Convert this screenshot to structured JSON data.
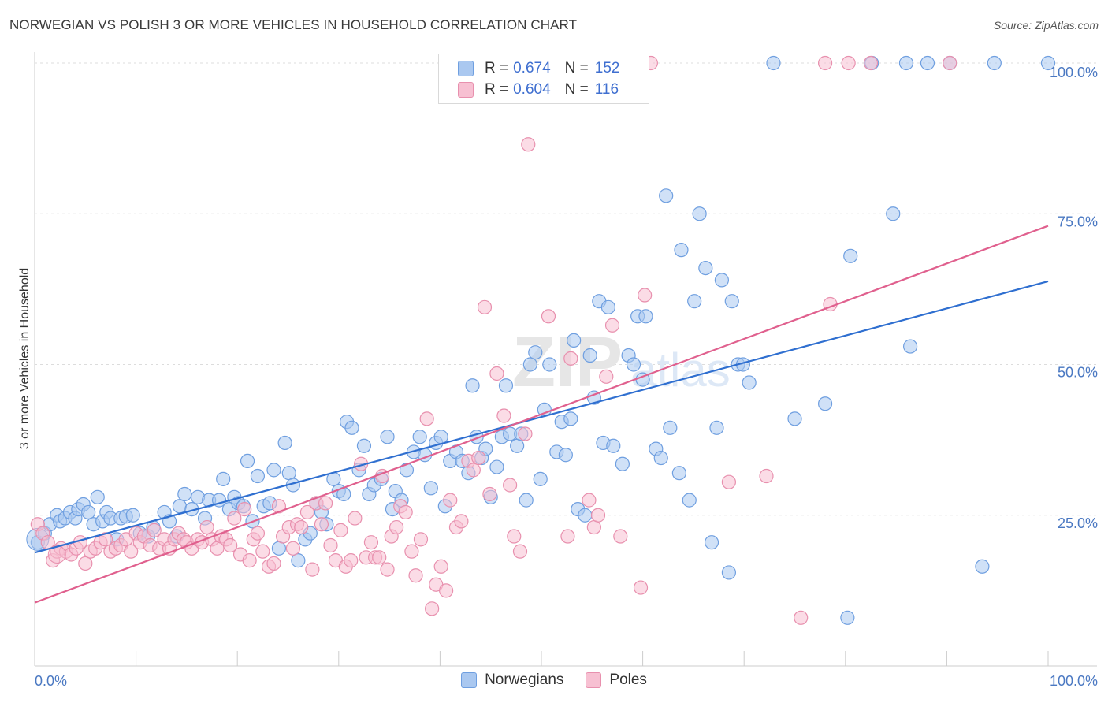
{
  "title": "NORWEGIAN VS POLISH 3 OR MORE VEHICLES IN HOUSEHOLD CORRELATION CHART",
  "source": "Source: ZipAtlas.com",
  "watermark": "ZIPatlas",
  "legend": {
    "r_label": "R =",
    "n_label": "N =",
    "rows": [
      {
        "r": "0.674",
        "n": "152",
        "color": "#aac8f0",
        "stroke": "#6f9fe0"
      },
      {
        "r": "0.604",
        "n": "116",
        "color": "#f7c0d2",
        "stroke": "#e890ae"
      }
    ]
  },
  "bottom_legend": [
    {
      "label": "Norwegians",
      "color": "#aac8f0",
      "stroke": "#6f9fe0"
    },
    {
      "label": "Poles",
      "color": "#f7c0d2",
      "stroke": "#e890ae"
    }
  ],
  "chart_data": {
    "type": "scatter",
    "title": "NORWEGIAN VS POLISH 3 OR MORE VEHICLES IN HOUSEHOLD CORRELATION CHART",
    "xlabel": "",
    "ylabel": "3 or more Vehicles in Household",
    "xlim": [
      0,
      100
    ],
    "ylim": [
      0,
      100
    ],
    "x_tick_labels": [
      "0.0%",
      "100.0%"
    ],
    "y_ticks": [
      25,
      50,
      75,
      100
    ],
    "y_tick_labels": [
      "25.0%",
      "50.0%",
      "75.0%",
      "100.0%"
    ],
    "grid": "horizontal dashed",
    "series": [
      {
        "name": "Norwegians",
        "color": "#6f9fe0",
        "fill": "#aac8f0",
        "line_color": "#2f6fd0",
        "trend": {
          "x": [
            0,
            100
          ],
          "y": [
            18.8,
            63.8
          ]
        },
        "points": [
          [
            0.3,
            20.5
          ],
          [
            1.0,
            22.0
          ],
          [
            1.5,
            23.5
          ],
          [
            2.2,
            25.0
          ],
          [
            2.5,
            24.0
          ],
          [
            3.0,
            24.5
          ],
          [
            3.5,
            25.5
          ],
          [
            4.0,
            24.5
          ],
          [
            4.3,
            26.0
          ],
          [
            4.8,
            26.8
          ],
          [
            5.3,
            25.5
          ],
          [
            5.8,
            23.5
          ],
          [
            6.2,
            28.0
          ],
          [
            6.7,
            24.0
          ],
          [
            7.1,
            25.5
          ],
          [
            7.5,
            24.5
          ],
          [
            8.1,
            21.0
          ],
          [
            8.5,
            24.5
          ],
          [
            9.0,
            24.8
          ],
          [
            9.7,
            25.0
          ],
          [
            10.4,
            22.0
          ],
          [
            11.2,
            21.5
          ],
          [
            11.7,
            23.0
          ],
          [
            12.8,
            25.5
          ],
          [
            13.3,
            24.0
          ],
          [
            14.0,
            21.5
          ],
          [
            14.3,
            26.5
          ],
          [
            14.8,
            28.5
          ],
          [
            15.5,
            26.0
          ],
          [
            16.1,
            28.0
          ],
          [
            16.8,
            24.5
          ],
          [
            17.2,
            27.5
          ],
          [
            18.2,
            27.5
          ],
          [
            18.6,
            31.0
          ],
          [
            19.2,
            26.0
          ],
          [
            19.7,
            28.0
          ],
          [
            20.1,
            27.0
          ],
          [
            20.6,
            26.5
          ],
          [
            21.0,
            34.0
          ],
          [
            21.5,
            24.0
          ],
          [
            22.0,
            31.5
          ],
          [
            22.6,
            26.5
          ],
          [
            23.2,
            27.0
          ],
          [
            23.6,
            32.5
          ],
          [
            24.1,
            19.5
          ],
          [
            24.7,
            37.0
          ],
          [
            25.1,
            32.0
          ],
          [
            25.5,
            30.0
          ],
          [
            26.0,
            17.5
          ],
          [
            26.7,
            21.0
          ],
          [
            27.2,
            22.0
          ],
          [
            27.8,
            27.0
          ],
          [
            28.3,
            25.5
          ],
          [
            28.8,
            23.5
          ],
          [
            29.5,
            31.0
          ],
          [
            30.0,
            29.0
          ],
          [
            30.5,
            28.5
          ],
          [
            30.8,
            40.5
          ],
          [
            31.3,
            39.5
          ],
          [
            32.0,
            32.5
          ],
          [
            32.5,
            36.5
          ],
          [
            33.0,
            28.5
          ],
          [
            33.5,
            30.0
          ],
          [
            34.2,
            31.0
          ],
          [
            34.8,
            38.0
          ],
          [
            35.3,
            26.0
          ],
          [
            35.6,
            29.0
          ],
          [
            36.2,
            27.5
          ],
          [
            36.7,
            32.5
          ],
          [
            37.4,
            35.5
          ],
          [
            38.0,
            38.0
          ],
          [
            38.5,
            35.0
          ],
          [
            39.1,
            29.5
          ],
          [
            39.6,
            37.0
          ],
          [
            40.1,
            38.0
          ],
          [
            40.5,
            26.5
          ],
          [
            41.0,
            34.0
          ],
          [
            41.6,
            35.5
          ],
          [
            42.2,
            34.0
          ],
          [
            42.8,
            32.0
          ],
          [
            43.2,
            46.5
          ],
          [
            43.6,
            38.0
          ],
          [
            44.1,
            34.5
          ],
          [
            44.5,
            36.0
          ],
          [
            45.0,
            28.0
          ],
          [
            45.6,
            33.0
          ],
          [
            46.1,
            38.0
          ],
          [
            46.5,
            46.5
          ],
          [
            46.9,
            38.5
          ],
          [
            47.6,
            36.5
          ],
          [
            48.0,
            38.5
          ],
          [
            48.5,
            27.5
          ],
          [
            48.9,
            50.0
          ],
          [
            49.4,
            52.0
          ],
          [
            49.9,
            31.0
          ],
          [
            50.3,
            42.5
          ],
          [
            50.8,
            50.0
          ],
          [
            51.5,
            35.5
          ],
          [
            52.0,
            40.5
          ],
          [
            52.4,
            35.0
          ],
          [
            52.9,
            41.0
          ],
          [
            53.2,
            54.0
          ],
          [
            53.6,
            26.0
          ],
          [
            54.3,
            25.0
          ],
          [
            54.8,
            51.5
          ],
          [
            55.2,
            44.5
          ],
          [
            55.7,
            60.5
          ],
          [
            56.1,
            37.0
          ],
          [
            56.6,
            59.5
          ],
          [
            57.1,
            36.5
          ],
          [
            58.0,
            33.5
          ],
          [
            58.6,
            51.5
          ],
          [
            59.1,
            50.0
          ],
          [
            59.5,
            58.0
          ],
          [
            60.0,
            47.5
          ],
          [
            60.3,
            58.0
          ],
          [
            61.3,
            36.0
          ],
          [
            61.8,
            34.5
          ],
          [
            62.3,
            78.0
          ],
          [
            62.7,
            39.5
          ],
          [
            63.6,
            32.0
          ],
          [
            63.8,
            69.0
          ],
          [
            64.6,
            27.5
          ],
          [
            65.1,
            60.5
          ],
          [
            65.6,
            75.0
          ],
          [
            66.2,
            66.0
          ],
          [
            66.8,
            20.5
          ],
          [
            67.3,
            39.5
          ],
          [
            67.8,
            64.0
          ],
          [
            68.5,
            15.5
          ],
          [
            68.8,
            60.5
          ],
          [
            69.4,
            50.0
          ],
          [
            69.9,
            50.0
          ],
          [
            70.5,
            47.0
          ],
          [
            72.9,
            100.0
          ],
          [
            75.0,
            41.0
          ],
          [
            78.0,
            43.5
          ],
          [
            80.2,
            8.0
          ],
          [
            80.5,
            68.0
          ],
          [
            82.6,
            100.0
          ],
          [
            84.7,
            75.0
          ],
          [
            86.0,
            100.0
          ],
          [
            86.4,
            53.0
          ],
          [
            88.1,
            100.0
          ],
          [
            90.3,
            100.0
          ],
          [
            93.5,
            16.5
          ],
          [
            94.7,
            100.0
          ],
          [
            100.0,
            100.0
          ]
        ]
      },
      {
        "name": "Poles",
        "color": "#e890ae",
        "fill": "#f7c0d2",
        "line_color": "#e0608e",
        "trend": {
          "x": [
            0,
            100
          ],
          "y": [
            10.5,
            73.0
          ]
        },
        "points": [
          [
            0.3,
            23.5
          ],
          [
            0.8,
            22.0
          ],
          [
            1.3,
            20.5
          ],
          [
            1.8,
            17.5
          ],
          [
            2.2,
            19.0
          ],
          [
            2.6,
            19.5
          ],
          [
            3.1,
            19.0
          ],
          [
            3.6,
            18.5
          ],
          [
            4.1,
            19.5
          ],
          [
            4.5,
            20.5
          ],
          [
            5.0,
            17.0
          ],
          [
            5.5,
            19.0
          ],
          [
            6.0,
            19.5
          ],
          [
            6.5,
            20.5
          ],
          [
            7.0,
            21.0
          ],
          [
            7.5,
            19.0
          ],
          [
            8.0,
            19.5
          ],
          [
            8.5,
            20.0
          ],
          [
            9.0,
            21.0
          ],
          [
            9.5,
            19.0
          ],
          [
            10.0,
            22.0
          ],
          [
            10.4,
            20.5
          ],
          [
            10.8,
            21.5
          ],
          [
            11.4,
            20.0
          ],
          [
            11.8,
            22.5
          ],
          [
            12.3,
            19.5
          ],
          [
            12.8,
            21.0
          ],
          [
            13.3,
            19.5
          ],
          [
            13.8,
            21.0
          ],
          [
            14.2,
            22.0
          ],
          [
            14.7,
            21.0
          ],
          [
            15.0,
            20.5
          ],
          [
            15.5,
            19.5
          ],
          [
            16.1,
            21.0
          ],
          [
            16.5,
            20.5
          ],
          [
            17.0,
            23.0
          ],
          [
            17.5,
            21.0
          ],
          [
            18.0,
            19.5
          ],
          [
            18.4,
            21.5
          ],
          [
            18.9,
            21.0
          ],
          [
            19.3,
            20.0
          ],
          [
            19.7,
            24.5
          ],
          [
            20.3,
            18.5
          ],
          [
            20.7,
            26.0
          ],
          [
            21.2,
            17.5
          ],
          [
            21.6,
            21.0
          ],
          [
            22.0,
            22.0
          ],
          [
            22.5,
            19.0
          ],
          [
            23.1,
            16.5
          ],
          [
            23.6,
            17.0
          ],
          [
            24.1,
            26.5
          ],
          [
            24.5,
            21.5
          ],
          [
            25.1,
            23.0
          ],
          [
            25.5,
            19.5
          ],
          [
            25.9,
            23.5
          ],
          [
            26.3,
            23.0
          ],
          [
            26.9,
            25.5
          ],
          [
            27.4,
            16.0
          ],
          [
            27.8,
            27.0
          ],
          [
            28.3,
            23.5
          ],
          [
            28.7,
            27.0
          ],
          [
            29.2,
            20.0
          ],
          [
            29.7,
            17.5
          ],
          [
            30.2,
            22.5
          ],
          [
            30.7,
            16.5
          ],
          [
            31.2,
            17.5
          ],
          [
            31.6,
            24.5
          ],
          [
            32.2,
            33.5
          ],
          [
            32.7,
            18.0
          ],
          [
            33.2,
            20.5
          ],
          [
            33.6,
            18.0
          ],
          [
            34.0,
            18.0
          ],
          [
            34.3,
            31.5
          ],
          [
            34.8,
            16.0
          ],
          [
            35.2,
            21.5
          ],
          [
            35.7,
            23.0
          ],
          [
            36.1,
            26.5
          ],
          [
            36.6,
            25.5
          ],
          [
            37.2,
            19.0
          ],
          [
            37.6,
            15.0
          ],
          [
            38.1,
            21.0
          ],
          [
            38.7,
            41.0
          ],
          [
            39.2,
            9.5
          ],
          [
            39.6,
            13.5
          ],
          [
            40.1,
            16.5
          ],
          [
            40.6,
            12.5
          ],
          [
            41.0,
            27.5
          ],
          [
            41.6,
            23.0
          ],
          [
            42.1,
            24.0
          ],
          [
            42.8,
            34.0
          ],
          [
            43.3,
            32.5
          ],
          [
            43.8,
            34.5
          ],
          [
            44.4,
            59.5
          ],
          [
            44.9,
            28.5
          ],
          [
            45.6,
            48.5
          ],
          [
            46.3,
            41.5
          ],
          [
            46.9,
            30.0
          ],
          [
            47.3,
            21.5
          ],
          [
            47.9,
            19.0
          ],
          [
            48.4,
            38.5
          ],
          [
            48.7,
            86.5
          ],
          [
            50.7,
            58.0
          ],
          [
            52.6,
            21.5
          ],
          [
            52.9,
            51.0
          ],
          [
            54.7,
            27.5
          ],
          [
            55.2,
            23.0
          ],
          [
            55.6,
            25.0
          ],
          [
            56.4,
            48.0
          ],
          [
            57.0,
            56.5
          ],
          [
            57.8,
            21.5
          ],
          [
            59.8,
            13.0
          ],
          [
            60.2,
            61.5
          ],
          [
            60.8,
            100.0
          ],
          [
            68.5,
            30.5
          ],
          [
            72.2,
            31.5
          ],
          [
            75.6,
            8.0
          ],
          [
            78.0,
            100.0
          ],
          [
            78.5,
            60.0
          ],
          [
            80.3,
            100.0
          ],
          [
            82.5,
            100.0
          ],
          [
            90.3,
            100.0
          ]
        ]
      }
    ]
  }
}
